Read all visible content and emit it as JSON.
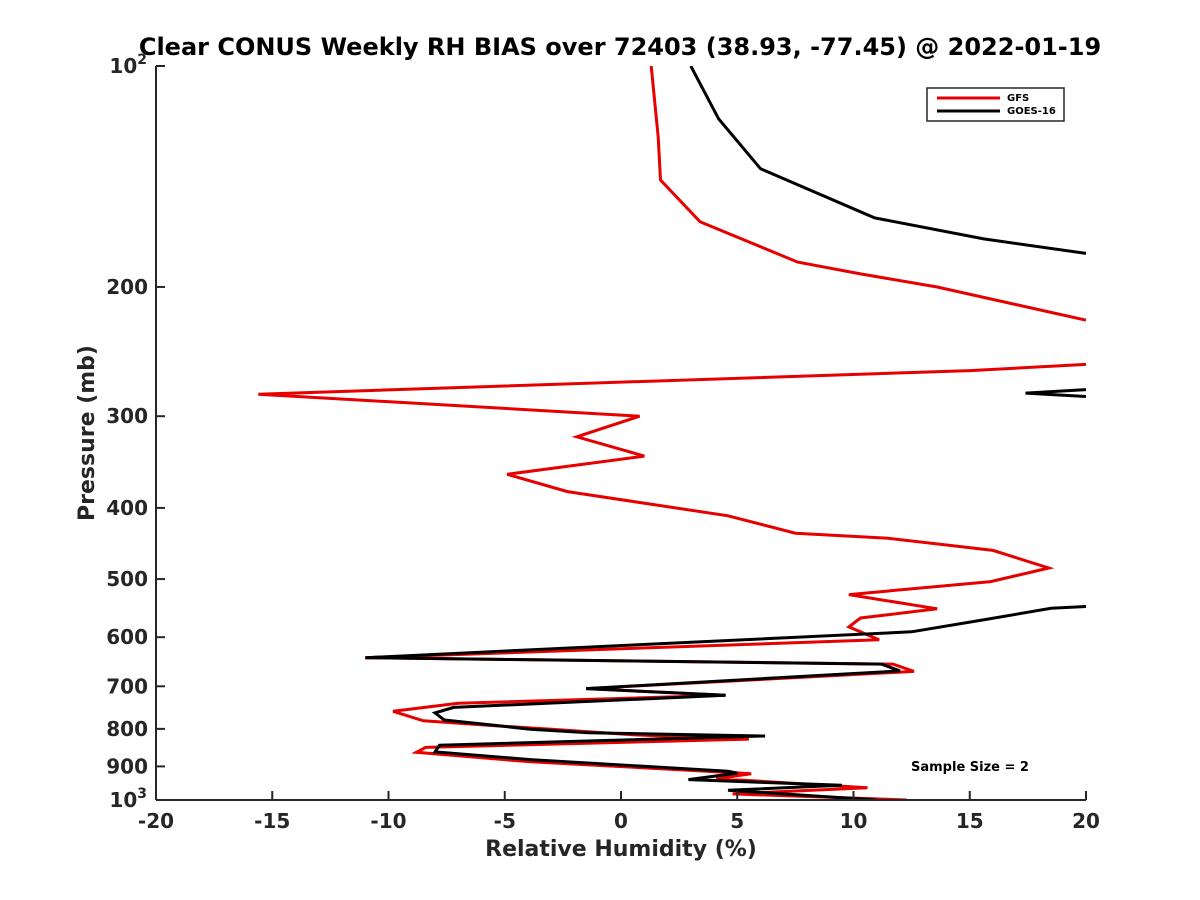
{
  "chart_data": {
    "type": "line",
    "title": "Clear CONUS Weekly RH BIAS over 72403 (38.93, -77.45) @ 2022-01-19",
    "xlabel": "Relative Humidity (%)",
    "ylabel": "Pressure (mb)",
    "xlim": [
      -20,
      20
    ],
    "ylim": [
      100,
      1000
    ],
    "y_scale": "log",
    "y_reversed": true,
    "grid": false,
    "legend_position": "top-right",
    "x_ticks": [
      "-20",
      "-15",
      "-10",
      "-5",
      "0",
      "5",
      "10",
      "15",
      "20"
    ],
    "y_ticks": [
      {
        "value": 100,
        "base": "10",
        "exp": "2"
      },
      {
        "value": 200,
        "label": "200"
      },
      {
        "value": 300,
        "label": "300"
      },
      {
        "value": 400,
        "label": "400"
      },
      {
        "value": 500,
        "label": "500"
      },
      {
        "value": 600,
        "label": "600"
      },
      {
        "value": 700,
        "label": "700"
      },
      {
        "value": 800,
        "label": "800"
      },
      {
        "value": 900,
        "label": "900"
      },
      {
        "value": 1000,
        "base": "10",
        "exp": "3"
      }
    ],
    "series": [
      {
        "name": "GFS",
        "color": "#e60000",
        "segments": [
          [
            [
              1.3,
              100
            ],
            [
              1.6,
              125
            ],
            [
              1.7,
              143
            ],
            [
              3.4,
              163
            ],
            [
              7.6,
              185
            ],
            [
              10.3,
              192
            ],
            [
              13.6,
              200
            ],
            [
              20,
              222
            ]
          ],
          [
            [
              20,
              255
            ],
            [
              15.0,
              260
            ],
            [
              -15.6,
              280
            ],
            [
              0.8,
              300
            ],
            [
              -1.9,
              320
            ],
            [
              1.0,
              340
            ],
            [
              -4.9,
              360
            ],
            [
              -2.3,
              380
            ],
            [
              1.2,
              395
            ],
            [
              4.6,
              410
            ],
            [
              7.5,
              433
            ],
            [
              11.5,
              440
            ],
            [
              16.0,
              457
            ],
            [
              18.4,
              483
            ],
            [
              15.9,
              504
            ],
            [
              9.8,
              525
            ],
            [
              13.6,
              549
            ],
            [
              10.3,
              565
            ],
            [
              9.8,
              581
            ],
            [
              11.1,
              605
            ],
            [
              -11.0,
              640
            ],
            [
              11.7,
              653
            ],
            [
              12.6,
              668
            ],
            [
              -1.5,
              705
            ],
            [
              4.5,
              720
            ],
            [
              -7.0,
              738
            ],
            [
              -9.8,
              757
            ],
            [
              -8.5,
              780
            ],
            [
              -5.4,
              792
            ],
            [
              -3.0,
              801
            ],
            [
              0.5,
              815
            ],
            [
              5.5,
              826
            ],
            [
              -8.4,
              848
            ],
            [
              -8.8,
              861
            ],
            [
              -3.9,
              887
            ],
            [
              4.9,
              918
            ],
            [
              5.6,
              921
            ],
            [
              4.1,
              935
            ],
            [
              10.6,
              962
            ],
            [
              4.8,
              981
            ],
            [
              12.3,
              1000
            ]
          ]
        ]
      },
      {
        "name": "GOES-16",
        "color": "#000000",
        "segments": [
          [
            [
              3.0,
              100
            ],
            [
              4.2,
              118
            ],
            [
              6.0,
              138
            ],
            [
              10.9,
              161
            ],
            [
              15.6,
              172
            ],
            [
              20,
              180
            ]
          ],
          [
            [
              20,
              276
            ],
            [
              17.4,
              279
            ],
            [
              20,
              282
            ]
          ],
          [
            [
              20,
              545
            ],
            [
              18.5,
              548
            ],
            [
              15.9,
              566
            ],
            [
              12.5,
              590
            ],
            [
              -11.0,
              640
            ],
            [
              11.2,
              653
            ],
            [
              12.0,
              667
            ],
            [
              -1.5,
              705
            ],
            [
              4.5,
              720
            ],
            [
              -7.2,
              748
            ],
            [
              -8.0,
              761
            ],
            [
              -7.6,
              778
            ],
            [
              -5.6,
              790
            ],
            [
              -3.9,
              801
            ],
            [
              -1.4,
              810
            ],
            [
              6.2,
              818
            ],
            [
              -7.8,
              842
            ],
            [
              -8.0,
              860
            ],
            [
              -3.9,
              881
            ],
            [
              4.6,
              914
            ],
            [
              5.0,
              919
            ],
            [
              2.9,
              938
            ],
            [
              9.5,
              955
            ],
            [
              4.6,
              970
            ],
            [
              11.0,
              1000
            ]
          ]
        ]
      }
    ],
    "annotations": [
      "Sample Size = 2"
    ]
  }
}
